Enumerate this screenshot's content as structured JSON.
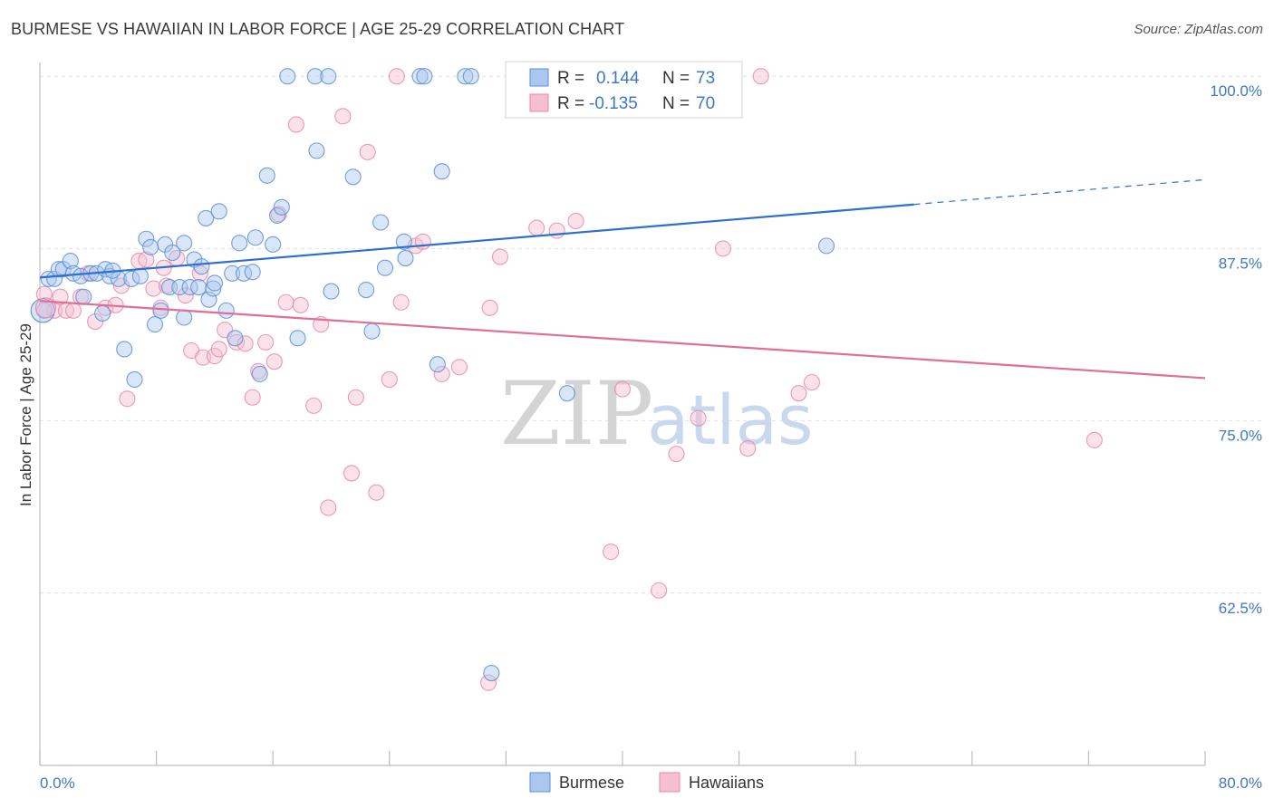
{
  "title": "BURMESE VS HAWAIIAN IN LABOR FORCE | AGE 25-29 CORRELATION CHART",
  "source": "Source: ZipAtlas.com",
  "watermark": {
    "zip": "ZIP",
    "atlas": "atlas"
  },
  "colors": {
    "blue_fill": "#aac8ef",
    "blue_stroke": "#5b8fd6",
    "blue_line": "#2e6fd0",
    "pink_fill": "#f6bfd1",
    "pink_stroke": "#e88aaa",
    "pink_line": "#e06e96",
    "grid": "#e2e2e2",
    "axis_text": "#3f78c5"
  },
  "chart_data": {
    "type": "scatter",
    "xlabel": "",
    "ylabel": "In Labor Force | Age 25-29",
    "xlim": [
      0.0,
      80.0
    ],
    "ylim": [
      50.0,
      101.0
    ],
    "x_tick_labels": [
      "0.0%",
      "80.0%"
    ],
    "y_ticks": [
      62.5,
      75.0,
      87.5,
      100.0
    ],
    "y_tick_labels": [
      "62.5%",
      "75.0%",
      "87.5%",
      "100.0%"
    ],
    "legend": [
      {
        "r_label": "R =",
        "r_value": "0.144",
        "n_label": "N =",
        "n_value": "73"
      },
      {
        "r_label": "R =",
        "r_value": "-0.135",
        "n_label": "N =",
        "n_value": "70"
      }
    ],
    "series": [
      {
        "name": "Burmese",
        "trend": {
          "x": [
            0.0,
            60.0
          ],
          "y": [
            85.4,
            90.7
          ],
          "dash_x": [
            60.0,
            80.0
          ],
          "dash_y": [
            90.7,
            92.5
          ]
        },
        "points": [
          [
            0.3,
            83.0
          ],
          [
            0.6,
            85.3
          ],
          [
            1.0,
            85.3
          ],
          [
            1.3,
            86.0
          ],
          [
            1.6,
            86.0
          ],
          [
            2.1,
            86.6
          ],
          [
            2.3,
            85.7
          ],
          [
            2.8,
            85.5
          ],
          [
            3.0,
            84.0
          ],
          [
            3.5,
            85.7
          ],
          [
            3.9,
            85.7
          ],
          [
            4.3,
            82.8
          ],
          [
            4.5,
            86.0
          ],
          [
            4.8,
            85.5
          ],
          [
            5.4,
            85.3
          ],
          [
            5.8,
            80.2
          ],
          [
            6.3,
            85.3
          ],
          [
            6.5,
            78.0
          ],
          [
            6.9,
            85.5
          ],
          [
            7.3,
            88.2
          ],
          [
            7.6,
            87.6
          ],
          [
            7.9,
            82.0
          ],
          [
            8.3,
            83.0
          ],
          [
            8.6,
            87.8
          ],
          [
            8.9,
            84.7
          ],
          [
            9.1,
            87.2
          ],
          [
            9.6,
            84.7
          ],
          [
            9.9,
            82.5
          ],
          [
            9.9,
            87.9
          ],
          [
            10.3,
            84.7
          ],
          [
            10.6,
            86.7
          ],
          [
            10.9,
            84.7
          ],
          [
            11.1,
            86.2
          ],
          [
            11.4,
            89.7
          ],
          [
            11.6,
            83.8
          ],
          [
            11.9,
            84.6
          ],
          [
            12.3,
            90.2
          ],
          [
            12.8,
            83.0
          ],
          [
            13.2,
            85.7
          ],
          [
            13.4,
            81.0
          ],
          [
            13.7,
            87.9
          ],
          [
            14.0,
            85.7
          ],
          [
            14.6,
            85.8
          ],
          [
            15.1,
            78.4
          ],
          [
            15.6,
            92.8
          ],
          [
            16.0,
            87.8
          ],
          [
            16.3,
            89.9
          ],
          [
            16.6,
            90.5
          ],
          [
            17.7,
            81.0
          ],
          [
            19.0,
            94.6
          ],
          [
            20.0,
            84.4
          ],
          [
            21.5,
            92.7
          ],
          [
            22.8,
            81.5
          ],
          [
            23.4,
            89.4
          ],
          [
            23.7,
            86.1
          ],
          [
            25.1,
            86.8
          ],
          [
            27.3,
            79.1
          ],
          [
            27.6,
            93.1
          ],
          [
            36.2,
            77.0
          ],
          [
            54.0,
            87.7
          ],
          [
            31.0,
            56.7
          ],
          [
            25.0,
            88.0
          ],
          [
            22.4,
            84.5
          ],
          [
            17.0,
            100.0
          ],
          [
            18.9,
            100.0
          ],
          [
            19.8,
            100.0
          ],
          [
            26.1,
            100.0
          ],
          [
            26.4,
            100.0
          ],
          [
            29.2,
            100.0
          ],
          [
            29.6,
            100.0
          ],
          [
            14.8,
            88.3
          ],
          [
            12.0,
            85.0
          ],
          [
            5.0,
            85.9
          ]
        ]
      },
      {
        "name": "Hawaiians",
        "trend": {
          "x": [
            0.0,
            80.0
          ],
          "y": [
            83.7,
            78.1
          ]
        },
        "points": [
          [
            0.3,
            84.2
          ],
          [
            1.0,
            83.0
          ],
          [
            1.4,
            84.0
          ],
          [
            1.8,
            83.0
          ],
          [
            2.3,
            83.0
          ],
          [
            2.8,
            84.0
          ],
          [
            3.3,
            85.7
          ],
          [
            3.8,
            82.2
          ],
          [
            4.5,
            83.2
          ],
          [
            5.2,
            83.4
          ],
          [
            5.6,
            84.8
          ],
          [
            6.0,
            76.6
          ],
          [
            6.8,
            86.6
          ],
          [
            7.3,
            86.7
          ],
          [
            7.8,
            84.6
          ],
          [
            8.3,
            83.2
          ],
          [
            8.5,
            86.1
          ],
          [
            8.7,
            84.8
          ],
          [
            9.4,
            86.8
          ],
          [
            10.0,
            84.1
          ],
          [
            10.4,
            80.1
          ],
          [
            11.0,
            85.7
          ],
          [
            11.2,
            79.6
          ],
          [
            12.0,
            79.7
          ],
          [
            12.3,
            80.2
          ],
          [
            12.7,
            81.6
          ],
          [
            13.5,
            80.7
          ],
          [
            14.1,
            80.6
          ],
          [
            14.6,
            76.7
          ],
          [
            15.0,
            78.6
          ],
          [
            15.5,
            80.7
          ],
          [
            16.1,
            79.3
          ],
          [
            16.4,
            90.0
          ],
          [
            16.9,
            83.6
          ],
          [
            17.6,
            96.5
          ],
          [
            17.9,
            83.4
          ],
          [
            18.8,
            76.1
          ],
          [
            19.3,
            82.0
          ],
          [
            19.8,
            68.7
          ],
          [
            20.8,
            97.1
          ],
          [
            21.4,
            71.2
          ],
          [
            21.7,
            76.7
          ],
          [
            22.5,
            94.5
          ],
          [
            23.1,
            69.8
          ],
          [
            24.0,
            78.0
          ],
          [
            24.8,
            83.6
          ],
          [
            25.8,
            87.7
          ],
          [
            26.3,
            88.0
          ],
          [
            27.6,
            78.4
          ],
          [
            28.8,
            78.9
          ],
          [
            30.8,
            56.0
          ],
          [
            30.9,
            83.2
          ],
          [
            31.6,
            86.9
          ],
          [
            34.1,
            89.0
          ],
          [
            35.5,
            88.8
          ],
          [
            36.8,
            89.5
          ],
          [
            39.2,
            65.5
          ],
          [
            40.0,
            77.3
          ],
          [
            42.5,
            62.7
          ],
          [
            43.7,
            72.6
          ],
          [
            45.2,
            75.2
          ],
          [
            46.9,
            87.5
          ],
          [
            48.6,
            73.0
          ],
          [
            52.1,
            77.0
          ],
          [
            53.0,
            77.8
          ],
          [
            72.4,
            73.6
          ],
          [
            24.5,
            100.0
          ],
          [
            33.4,
            100.0
          ],
          [
            44.8,
            100.0
          ],
          [
            49.5,
            100.0
          ]
        ]
      }
    ],
    "bottom_legend": [
      "Burmese",
      "Hawaiians"
    ]
  }
}
